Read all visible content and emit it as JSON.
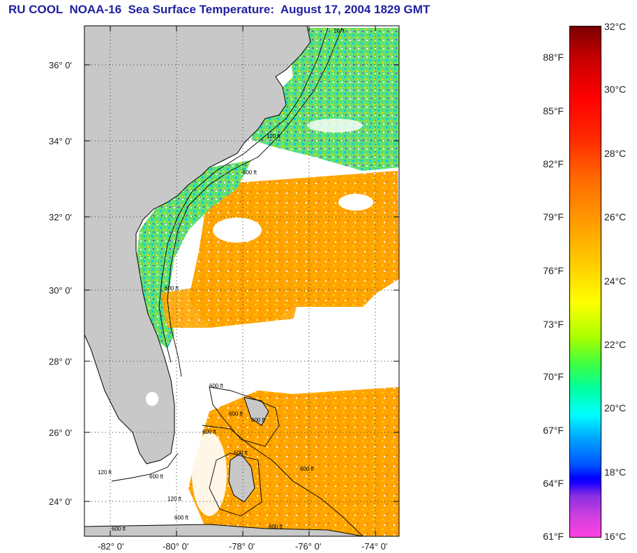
{
  "title": "RU COOL  NOAA-16  Sea Surface Temperature:  August 17, 2004 1829 GMT",
  "map": {
    "latitude_labels": [
      "36° 0'",
      "34° 0'",
      "32° 0'",
      "30° 0'",
      "28° 0'",
      "26° 0'",
      "24° 0'"
    ],
    "longitude_labels": [
      "-82° 0'",
      "-80° 0'",
      "-78° 0'",
      "-76° 0'",
      "-74° 0'"
    ],
    "contour_labels": [
      "20 ft",
      "120 ft",
      "600 ft",
      "600 ft",
      "600 ft",
      "600 ft",
      "600 ft",
      "600 ft",
      "120 ft",
      "600 ft",
      "120 ft",
      "600 ft",
      "600 ft",
      "600 ft",
      "600 ft",
      "600 ft"
    ]
  },
  "colorbar": {
    "celsius_labels": [
      "32°C",
      "30°C",
      "28°C",
      "26°C",
      "24°C",
      "22°C",
      "20°C",
      "18°C",
      "16°C"
    ],
    "fahrenheit_labels": [
      "88°F",
      "85°F",
      "82°F",
      "79°F",
      "76°F",
      "73°F",
      "70°F",
      "67°F",
      "64°F",
      "61°F"
    ],
    "range_celsius": [
      16,
      32
    ]
  },
  "colors": {
    "title": "#1f1f9f",
    "land": "#c8c8c8",
    "no_data": "#ffffff",
    "warm": "#ff9a00"
  }
}
